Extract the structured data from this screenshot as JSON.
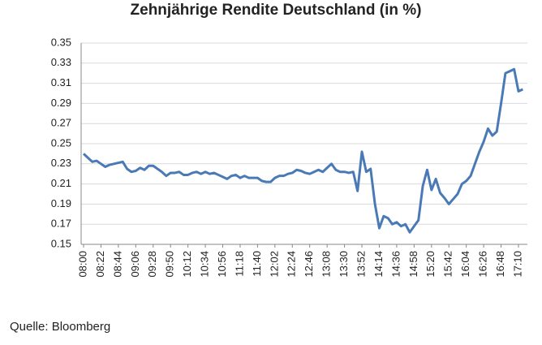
{
  "chart_data": {
    "type": "line",
    "title": "Zehnjährige Rendite Deutschland (in %)",
    "source": "Quelle: Bloomberg",
    "categories": [
      "08:00",
      null,
      null,
      null,
      "08:22",
      null,
      null,
      null,
      "08:44",
      null,
      null,
      null,
      "09:06",
      null,
      null,
      null,
      "09:28",
      null,
      null,
      null,
      "09:50",
      null,
      null,
      null,
      "10:12",
      null,
      null,
      null,
      "10:34",
      null,
      null,
      null,
      "10:56",
      null,
      null,
      null,
      "11:18",
      null,
      null,
      null,
      "11:40",
      null,
      null,
      null,
      "12:02",
      null,
      null,
      null,
      "12:24",
      null,
      null,
      null,
      "12:46",
      null,
      null,
      null,
      "13:08",
      null,
      null,
      null,
      "13:30",
      null,
      null,
      null,
      "13:52",
      null,
      null,
      null,
      "14:14",
      null,
      null,
      null,
      "14:36",
      null,
      null,
      null,
      "14:58",
      null,
      null,
      null,
      "15:20",
      null,
      null,
      null,
      "15:42",
      null,
      null,
      null,
      "16:04",
      null,
      null,
      null,
      "16:26",
      null,
      null,
      null,
      "16:48",
      null,
      null,
      null,
      "17:10",
      null
    ],
    "series": [
      {
        "name": "Rendite",
        "color": "#4a7ab5",
        "values": [
          0.24,
          0.236,
          0.232,
          0.233,
          0.23,
          0.227,
          0.229,
          0.23,
          0.231,
          0.232,
          0.225,
          0.222,
          0.223,
          0.226,
          0.224,
          0.228,
          0.228,
          0.225,
          0.222,
          0.218,
          0.221,
          0.221,
          0.222,
          0.219,
          0.219,
          0.221,
          0.222,
          0.22,
          0.222,
          0.22,
          0.221,
          0.219,
          0.217,
          0.215,
          0.218,
          0.219,
          0.216,
          0.218,
          0.216,
          0.216,
          0.216,
          0.213,
          0.212,
          0.212,
          0.216,
          0.218,
          0.218,
          0.22,
          0.221,
          0.224,
          0.223,
          0.221,
          0.22,
          0.222,
          0.224,
          0.222,
          0.226,
          0.23,
          0.224,
          0.222,
          0.222,
          0.221,
          0.222,
          0.203,
          0.242,
          0.222,
          0.225,
          0.19,
          0.166,
          0.178,
          0.176,
          0.17,
          0.172,
          0.168,
          0.17,
          0.162,
          0.168,
          0.174,
          0.208,
          0.224,
          0.204,
          0.215,
          0.201,
          0.196,
          0.19,
          0.195,
          0.2,
          0.21,
          0.213,
          0.218,
          0.23,
          0.242,
          0.252,
          0.265,
          0.258,
          0.262,
          0.29,
          0.32,
          0.322,
          0.324,
          0.302,
          0.304
        ]
      }
    ],
    "ylim": [
      0.15,
      0.35
    ],
    "yticks": [
      0.15,
      0.17,
      0.19,
      0.21,
      0.23,
      0.25,
      0.27,
      0.29,
      0.31,
      0.33,
      0.35
    ],
    "grid": true
  }
}
